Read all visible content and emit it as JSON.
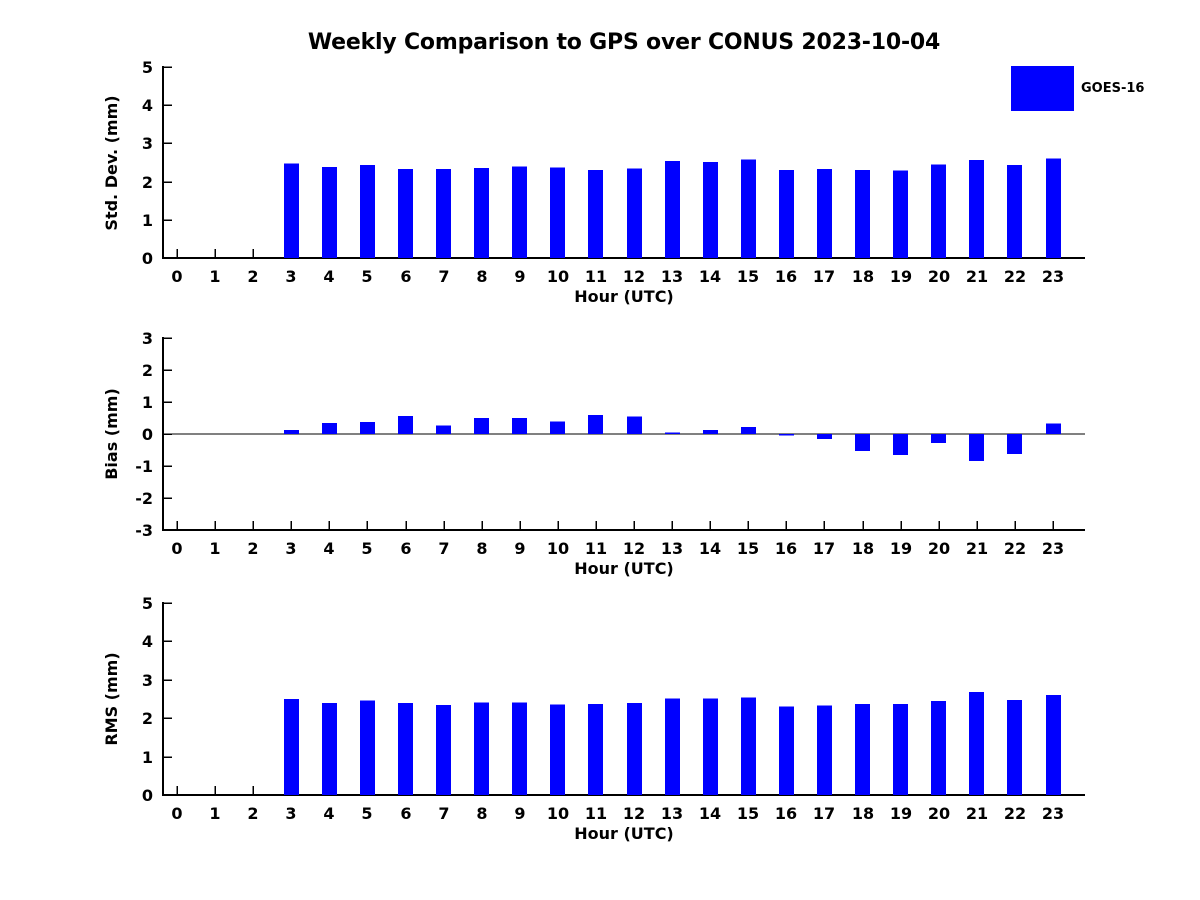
{
  "figure": {
    "title": "Weekly Comparison to GPS over CONUS 2023-10-04",
    "legend": {
      "label": "GOES-16",
      "color": "#0000FF"
    },
    "background_color": "#FFFFFF",
    "text_color": "#000000"
  },
  "chart_data": [
    {
      "type": "bar",
      "id": "std-dev",
      "ylabel": "Std. Dev. (mm)",
      "xlabel": "Hour (UTC)",
      "ylim": [
        0,
        5
      ],
      "yticks": [
        0,
        1,
        2,
        3,
        4,
        5
      ],
      "grid": false,
      "legend_position": "upper-right-outside",
      "categories": [
        "0",
        "1",
        "2",
        "3",
        "4",
        "5",
        "6",
        "7",
        "8",
        "9",
        "10",
        "11",
        "12",
        "13",
        "14",
        "15",
        "16",
        "17",
        "18",
        "19",
        "20",
        "21",
        "22",
        "23"
      ],
      "series": [
        {
          "name": "GOES-16",
          "color": "#0000FF",
          "values": [
            null,
            null,
            null,
            2.48,
            2.38,
            2.43,
            2.33,
            2.33,
            2.36,
            2.39,
            2.37,
            2.3,
            2.34,
            2.54,
            2.51,
            2.58,
            2.3,
            2.33,
            2.3,
            2.29,
            2.45,
            2.57,
            2.43,
            2.6
          ]
        }
      ]
    },
    {
      "type": "bar",
      "id": "bias",
      "ylabel": "Bias (mm)",
      "xlabel": "Hour (UTC)",
      "ylim": [
        -3,
        3
      ],
      "yticks": [
        -3,
        -2,
        -1,
        0,
        1,
        2,
        3
      ],
      "zero_line": true,
      "grid": false,
      "categories": [
        "0",
        "1",
        "2",
        "3",
        "4",
        "5",
        "6",
        "7",
        "8",
        "9",
        "10",
        "11",
        "12",
        "13",
        "14",
        "15",
        "16",
        "17",
        "18",
        "19",
        "20",
        "21",
        "22",
        "23"
      ],
      "series": [
        {
          "name": "GOES-16",
          "color": "#0000FF",
          "values": [
            null,
            null,
            null,
            0.13,
            0.34,
            0.38,
            0.57,
            0.26,
            0.5,
            0.5,
            0.39,
            0.6,
            0.55,
            0.05,
            0.13,
            0.22,
            -0.05,
            -0.16,
            -0.53,
            -0.66,
            -0.28,
            -0.85,
            -0.63,
            0.33
          ]
        }
      ]
    },
    {
      "type": "bar",
      "id": "rms",
      "ylabel": "RMS (mm)",
      "xlabel": "Hour (UTC)",
      "ylim": [
        0,
        5
      ],
      "yticks": [
        0,
        1,
        2,
        3,
        4,
        5
      ],
      "grid": false,
      "categories": [
        "0",
        "1",
        "2",
        "3",
        "4",
        "5",
        "6",
        "7",
        "8",
        "9",
        "10",
        "11",
        "12",
        "13",
        "14",
        "15",
        "16",
        "17",
        "18",
        "19",
        "20",
        "21",
        "22",
        "23"
      ],
      "series": [
        {
          "name": "GOES-16",
          "color": "#0000FF",
          "values": [
            null,
            null,
            null,
            2.5,
            2.4,
            2.46,
            2.39,
            2.34,
            2.41,
            2.41,
            2.36,
            2.37,
            2.4,
            2.51,
            2.51,
            2.54,
            2.3,
            2.33,
            2.37,
            2.37,
            2.45,
            2.68,
            2.47,
            2.6
          ]
        }
      ]
    }
  ]
}
